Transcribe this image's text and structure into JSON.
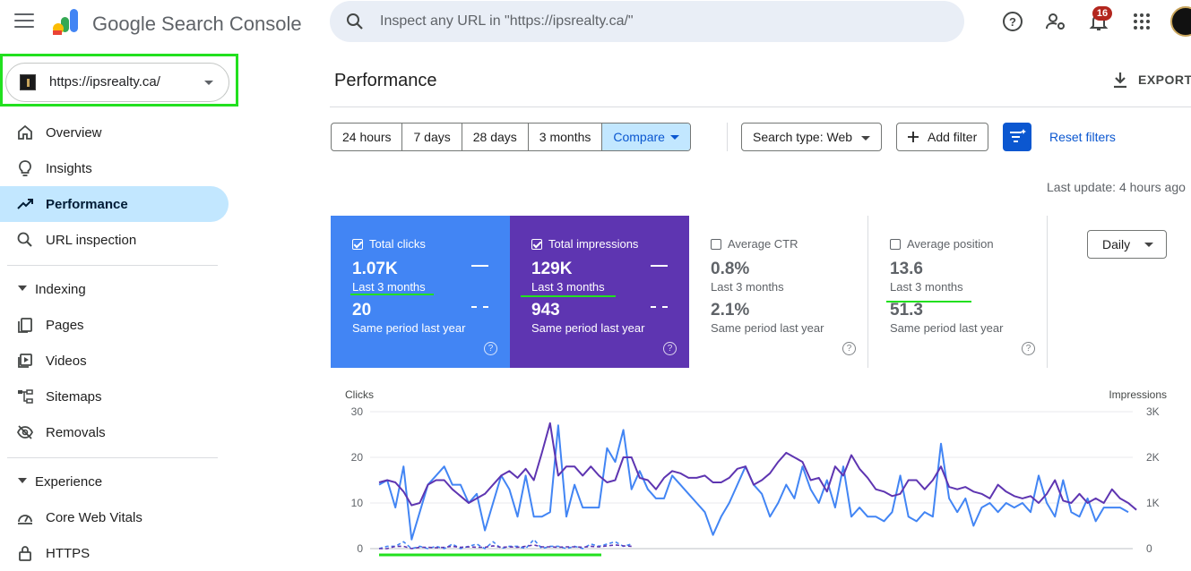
{
  "topbar": {
    "brand": "Google Search Console",
    "search_placeholder": "Inspect any URL in \"https://ipsrealty.ca/\"",
    "notifications_count": "16"
  },
  "property": {
    "url": "https://ipsrealty.ca/"
  },
  "sidebar": {
    "items_top": [
      {
        "label": "Overview",
        "icon": "home-icon"
      },
      {
        "label": "Insights",
        "icon": "lightbulb-icon"
      },
      {
        "label": "Performance",
        "icon": "trending-up-icon",
        "active": true
      },
      {
        "label": "URL inspection",
        "icon": "search-icon"
      }
    ],
    "indexing_label": "Indexing",
    "indexing_items": [
      {
        "label": "Pages",
        "icon": "pages-icon"
      },
      {
        "label": "Videos",
        "icon": "video-icon"
      },
      {
        "label": "Sitemaps",
        "icon": "sitemap-icon"
      },
      {
        "label": "Removals",
        "icon": "eye-off-icon"
      }
    ],
    "experience_label": "Experience",
    "experience_items": [
      {
        "label": "Core Web Vitals",
        "icon": "gauge-icon"
      },
      {
        "label": "HTTPS",
        "icon": "lock-icon"
      }
    ]
  },
  "main": {
    "title": "Performance",
    "export_label": "EXPORT",
    "date_ranges": [
      "24 hours",
      "7 days",
      "28 days",
      "3 months",
      "Compare"
    ],
    "search_type_label": "Search type: Web",
    "add_filter_label": "Add filter",
    "reset_filters_label": "Reset filters",
    "last_update": "Last update: 4 hours ago",
    "granularity": "Daily"
  },
  "metrics": [
    {
      "label": "Total clicks",
      "checked": true,
      "current": "1.07K",
      "current_period": "Last 3 months",
      "previous": "20",
      "previous_period": "Same period last year"
    },
    {
      "label": "Total impressions",
      "checked": true,
      "current": "129K",
      "current_period": "Last 3 months",
      "previous": "943",
      "previous_period": "Same period last year"
    },
    {
      "label": "Average CTR",
      "checked": false,
      "current": "0.8%",
      "current_period": "Last 3 months",
      "previous": "2.1%",
      "previous_period": "Same period last year"
    },
    {
      "label": "Average position",
      "checked": false,
      "current": "13.6",
      "current_period": "Last 3 months",
      "previous": "51.3",
      "previous_period": "Same period last year"
    }
  ],
  "colors": {
    "clicks": "#4285f4",
    "impressions": "#5e35b1",
    "highlight": "#22e01f",
    "accent": "#0b57d0"
  },
  "chart_data": {
    "type": "line",
    "left_axis_label": "Clicks",
    "right_axis_label": "Impressions",
    "left_ticks": [
      "30",
      "20",
      "10",
      "0"
    ],
    "right_ticks": [
      "3K",
      "2K",
      "1K",
      "0"
    ],
    "ylim_left": [
      0,
      30
    ],
    "ylim_right": [
      0,
      3000
    ],
    "series": [
      {
        "name": "Total clicks",
        "axis": "left",
        "style": "solid",
        "color": "#4285f4",
        "values": [
          14,
          15,
          9,
          18,
          2,
          8,
          14,
          16,
          18,
          14,
          14,
          10,
          12,
          4,
          10,
          16,
          13,
          7,
          16,
          7,
          7,
          8,
          27,
          7,
          14,
          9,
          9,
          9,
          22,
          19,
          26,
          13,
          17,
          13,
          11,
          11,
          16,
          14,
          12,
          10,
          8,
          3,
          7,
          10,
          14,
          18,
          14,
          12,
          7,
          10,
          14,
          11,
          18,
          13,
          10,
          15,
          9,
          18,
          7,
          9,
          7,
          7,
          6,
          8,
          16,
          7,
          6,
          8,
          7,
          23,
          11,
          8,
          11,
          5,
          9,
          10,
          8,
          10,
          9,
          10,
          8,
          16,
          10,
          7,
          15,
          8,
          7,
          11,
          6,
          9,
          9,
          9,
          8
        ]
      },
      {
        "name": "Total impressions",
        "axis": "left",
        "style": "solid",
        "color": "#5e35b1",
        "values": [
          14.5,
          15,
          14.5,
          12.5,
          9.5,
          10,
          14,
          15,
          15,
          13,
          11.5,
          10,
          11,
          12,
          14,
          16,
          17,
          15.5,
          17.5,
          15,
          21,
          27.5,
          16,
          18,
          18,
          16,
          18,
          16,
          14.5,
          15,
          20,
          20,
          15.5,
          15,
          13,
          15.5,
          17,
          16.5,
          15.5,
          15.5,
          16,
          14.5,
          14.5,
          15.5,
          17.5,
          18,
          14,
          15,
          16.5,
          19,
          21,
          20,
          19,
          15,
          15.5,
          12.5,
          18,
          16,
          20.5,
          17.5,
          15.5,
          13,
          12.5,
          11.5,
          12,
          15,
          15,
          13,
          15,
          18,
          13.5,
          13,
          13.5,
          12.5,
          12,
          11,
          14,
          12.5,
          11.5,
          11,
          11.5,
          10,
          12,
          15,
          10.5,
          10,
          12,
          10,
          11,
          10,
          13,
          11,
          10,
          8.5
        ]
      },
      {
        "name": "Total clicks (previous)",
        "axis": "left",
        "style": "dashed",
        "color": "#4285f4",
        "values": [
          0,
          0.5,
          0.5,
          1.5,
          0,
          0.5,
          0,
          0.5,
          0,
          1,
          0,
          0.5,
          1,
          0,
          1.5,
          0,
          0.5,
          0.5,
          0,
          2,
          0,
          0.5,
          0.5,
          0,
          0.5,
          0,
          1,
          0.5,
          1,
          1.5,
          0.5,
          1
        ]
      },
      {
        "name": "Total impressions (previous)",
        "axis": "left",
        "style": "dashed",
        "color": "#5e35b1",
        "values": [
          0,
          0,
          0.5,
          0.5,
          0,
          0.3,
          0.3,
          0.2,
          0.3,
          0.5,
          0.3,
          0.4,
          0.3,
          0.3,
          0.6,
          0.3,
          0.4,
          0.3,
          0.5,
          0.8,
          0.4,
          0.4,
          0.3,
          0.4,
          0.4,
          0.3,
          0.5,
          0.4,
          0.6,
          0.8,
          0.6,
          0.5
        ]
      }
    ],
    "grid": true,
    "legend": "none"
  }
}
